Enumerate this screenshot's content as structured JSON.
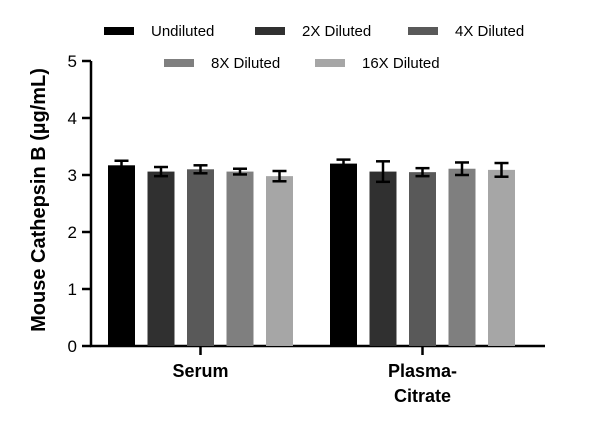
{
  "chart_data": {
    "type": "bar",
    "title": "",
    "xlabel": "",
    "ylabel": "Mouse Cathepsin B (µg/mL)",
    "ylim": [
      0,
      5
    ],
    "yticks": [
      0,
      1,
      2,
      3,
      4,
      5
    ],
    "grid": false,
    "legend_position": "top",
    "categories": [
      {
        "lines": [
          "Serum"
        ]
      },
      {
        "lines": [
          "Plasma-",
          "Citrate"
        ]
      }
    ],
    "series": [
      {
        "name": "Undiluted",
        "color": "#000000",
        "values": [
          3.17,
          3.2
        ],
        "errors": [
          0.08,
          0.07
        ]
      },
      {
        "name": "2X Diluted",
        "color": "#303030",
        "values": [
          3.06,
          3.06
        ],
        "errors": [
          0.08,
          0.18
        ]
      },
      {
        "name": "4X Diluted",
        "color": "#595959",
        "values": [
          3.1,
          3.05
        ],
        "errors": [
          0.07,
          0.07
        ]
      },
      {
        "name": "8X Diluted",
        "color": "#7f7f7f",
        "values": [
          3.06,
          3.11
        ],
        "errors": [
          0.05,
          0.11
        ]
      },
      {
        "name": "16X Diluted",
        "color": "#a6a6a6",
        "values": [
          2.98,
          3.09
        ],
        "errors": [
          0.09,
          0.12
        ]
      }
    ]
  }
}
